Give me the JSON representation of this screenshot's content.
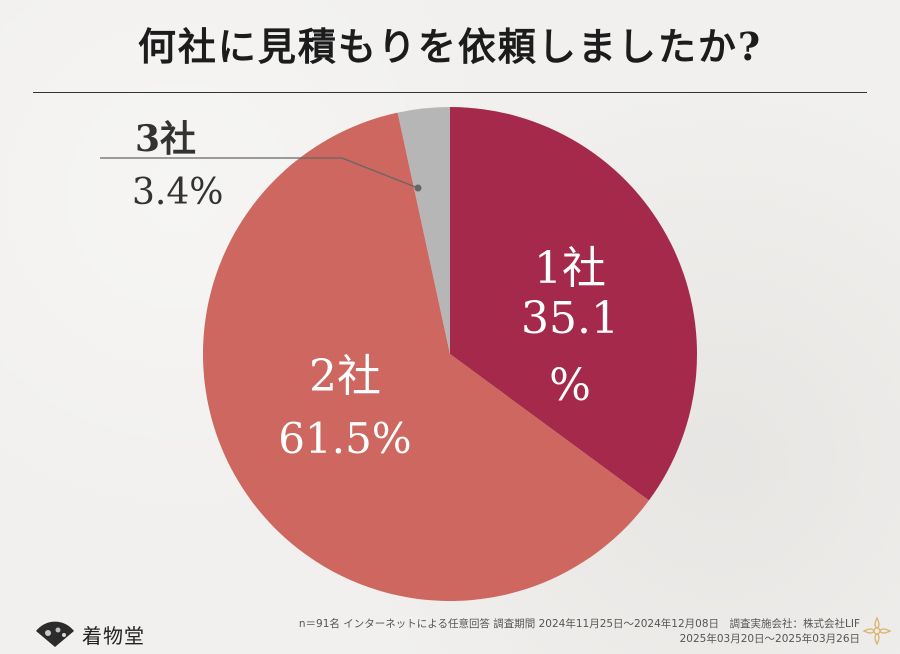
{
  "title": "何社に見積もりを依頼しましたか?",
  "chart_data": {
    "type": "pie",
    "title": "何社に見積もりを依頼しましたか?",
    "start_angle_deg": 0,
    "direction": "clockwise",
    "slices": [
      {
        "label": "1社",
        "value": 35.1,
        "display_value": "35.1",
        "unit": "%",
        "color": "#a4294b"
      },
      {
        "label": "2社",
        "value": 61.5,
        "display_value": "61.5%",
        "color": "#cd675f"
      },
      {
        "label": "3社",
        "value": 3.4,
        "display_value": "3.4%",
        "color": "#b6b6b6"
      }
    ]
  },
  "footer": {
    "logo_text": "着物堂",
    "note_line1": "n＝91名 インターネットによる任意回答 調査期間 2024年11月25日〜2024年12月08日　調査実施会社：株式会社LIF",
    "note_line2": "2025年03月20日〜2025年03月26日"
  },
  "colors": {
    "background": "#f1f0ee",
    "leader_line": "#666666"
  }
}
